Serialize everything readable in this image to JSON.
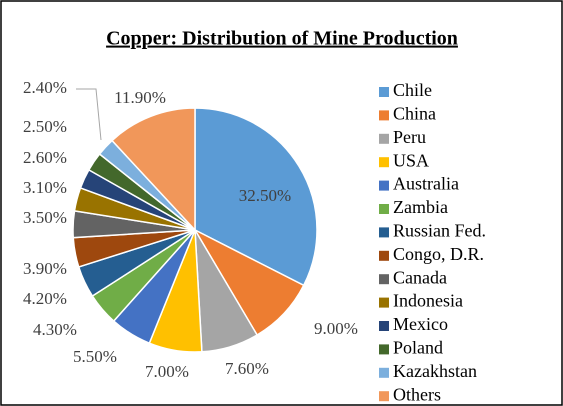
{
  "chart_data": {
    "type": "pie",
    "title": "Copper: Distribution of Mine Production",
    "categories": [
      "Chile",
      "China",
      "Peru",
      "USA",
      "Australia",
      "Zambia",
      "Russian Fed.",
      "Congo, D.R.",
      "Canada",
      "Indonesia",
      "Mexico",
      "Poland",
      "Kazakhstan",
      "Others"
    ],
    "values": [
      32.5,
      9.0,
      7.6,
      7.0,
      5.5,
      4.3,
      4.2,
      3.9,
      3.5,
      3.1,
      2.6,
      2.5,
      2.4,
      11.9
    ],
    "value_labels": [
      "32.50%",
      "9.00%",
      "7.60%",
      "7.00%",
      "5.50%",
      "4.30%",
      "4.20%",
      "3.90%",
      "3.50%",
      "3.10%",
      "2.60%",
      "2.50%",
      "2.40%",
      "11.90%"
    ],
    "colors": [
      "#5B9BD5",
      "#ED7D31",
      "#A5A5A5",
      "#FFC000",
      "#4472C4",
      "#70AD47",
      "#255E91",
      "#9E480E",
      "#636363",
      "#997300",
      "#264478",
      "#43682B",
      "#7CAFDD",
      "#F1975A"
    ],
    "legend": "right"
  }
}
